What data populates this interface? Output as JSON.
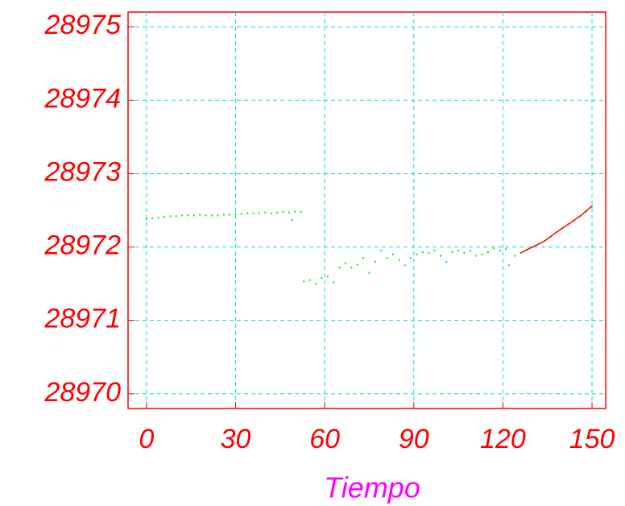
{
  "chart_data": {
    "type": "scatter",
    "x_label": "Tiempo",
    "xlim": [
      -6.2,
      154.6
    ],
    "ylim": [
      28969.8,
      28975.2
    ],
    "xticks": [
      0,
      30,
      60,
      90,
      120,
      150
    ],
    "yticks": [
      28970,
      28971,
      28972,
      28973,
      28974,
      28975
    ],
    "grid": true,
    "series": [
      {
        "color": "#00ee00",
        "mode": "markers",
        "x": [
          0,
          2,
          4,
          6,
          8,
          10,
          12,
          14,
          16,
          18,
          20,
          22,
          24,
          26,
          28,
          30,
          32,
          34,
          36,
          38,
          40,
          42,
          44,
          46,
          48,
          49,
          50,
          52,
          53,
          55,
          57,
          59,
          61,
          63,
          65,
          67,
          69,
          71,
          73,
          75,
          77,
          79,
          81,
          83,
          85,
          87,
          89,
          91,
          93,
          95,
          97,
          99,
          101,
          103,
          105,
          107,
          109,
          111,
          113,
          115,
          117,
          119,
          121,
          122,
          124,
          126,
          128,
          130,
          132,
          134,
          136,
          138,
          140,
          142,
          144,
          146,
          148,
          150
        ],
        "values": [
          28972.38,
          28972.39,
          28972.4,
          28972.41,
          28972.42,
          28972.42,
          28972.43,
          28972.43,
          28972.43,
          28972.44,
          28972.43,
          28972.43,
          28972.43,
          28972.44,
          28972.44,
          28972.45,
          28972.45,
          28972.46,
          28972.46,
          28972.46,
          28972.47,
          28972.46,
          28972.47,
          28972.48,
          28972.47,
          28972.37,
          28972.48,
          28972.48,
          28971.53,
          28971.55,
          28971.5,
          28971.58,
          28971.6,
          28971.52,
          28971.72,
          28971.78,
          28971.72,
          28971.76,
          28971.85,
          28971.65,
          28971.8,
          28971.95,
          28971.85,
          28971.9,
          28971.82,
          28971.75,
          28971.85,
          28971.9,
          28971.93,
          28971.92,
          28971.95,
          28971.88,
          28971.8,
          28971.93,
          28971.95,
          28971.92,
          28971.95,
          28971.88,
          28971.9,
          28971.93,
          28971.98,
          28971.95,
          28971.97,
          28971.75,
          28971.88,
          28971.92,
          28971.96,
          28972.0,
          28972.04,
          28972.08,
          28972.14,
          28972.2,
          28972.26,
          28972.31,
          28972.36,
          28972.42,
          28972.48,
          28972.55
        ]
      },
      {
        "color": "#ff0000",
        "mode": "lines",
        "x": [
          126,
          130,
          134,
          138,
          142,
          146,
          150
        ],
        "values": [
          28971.92,
          28972.0,
          28972.08,
          28972.2,
          28972.31,
          28972.42,
          28972.56
        ]
      }
    ]
  }
}
